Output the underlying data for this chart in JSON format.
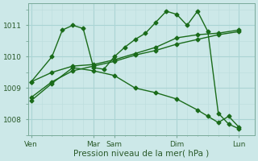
{
  "bg_color": "#cce8e8",
  "grid_color_major": "#aad4d4",
  "grid_color_minor": "#bbdddd",
  "line_color": "#1a6b1a",
  "marker": "D",
  "markersize": 2.5,
  "linewidth": 1.0,
  "xlabel": "Pression niveau de la mer( hPa )",
  "xlabel_fontsize": 7.5,
  "tick_fontsize": 6.5,
  "ylim": [
    1007.5,
    1011.7
  ],
  "yticks": [
    1008,
    1009,
    1010,
    1011
  ],
  "xtick_labels": [
    "Ven",
    "Mar",
    "Sam",
    "Dim",
    "Lun"
  ],
  "xtick_positions": [
    0,
    6,
    8,
    14,
    20
  ],
  "xminor_positions": [
    1,
    2,
    3,
    4,
    5,
    7,
    9,
    10,
    11,
    12,
    13,
    15,
    16,
    17,
    18,
    19
  ],
  "xlim": [
    -0.3,
    21.5
  ],
  "series": [
    {
      "x": [
        0,
        2,
        4,
        6,
        8,
        10,
        12,
        14,
        16,
        18,
        20
      ],
      "y": [
        1008.7,
        1009.2,
        1009.55,
        1009.7,
        1009.85,
        1010.05,
        1010.2,
        1010.4,
        1010.55,
        1010.7,
        1010.8
      ]
    },
    {
      "x": [
        0,
        2,
        4,
        6,
        8,
        10,
        12,
        14,
        16,
        18,
        20
      ],
      "y": [
        1009.2,
        1009.5,
        1009.7,
        1009.75,
        1009.9,
        1010.1,
        1010.3,
        1010.6,
        1010.7,
        1010.75,
        1010.85
      ]
    },
    {
      "x": [
        0,
        2,
        3,
        4,
        5,
        6,
        7,
        8,
        9,
        10,
        11,
        12,
        13,
        14,
        15,
        16,
        17,
        18,
        19,
        20
      ],
      "y": [
        1009.2,
        1010.0,
        1010.85,
        1011.0,
        1010.9,
        1009.65,
        1009.6,
        1010.0,
        1010.3,
        1010.55,
        1010.75,
        1011.1,
        1011.45,
        1011.35,
        1011.0,
        1011.45,
        1010.8,
        1008.2,
        1007.85,
        1007.7
      ]
    },
    {
      "x": [
        0,
        2,
        4,
        6,
        8,
        10,
        12,
        14,
        16,
        17,
        18,
        19,
        20
      ],
      "y": [
        1008.6,
        1009.15,
        1009.65,
        1009.55,
        1009.4,
        1009.0,
        1008.85,
        1008.65,
        1008.3,
        1008.1,
        1007.9,
        1008.1,
        1007.75
      ]
    }
  ]
}
